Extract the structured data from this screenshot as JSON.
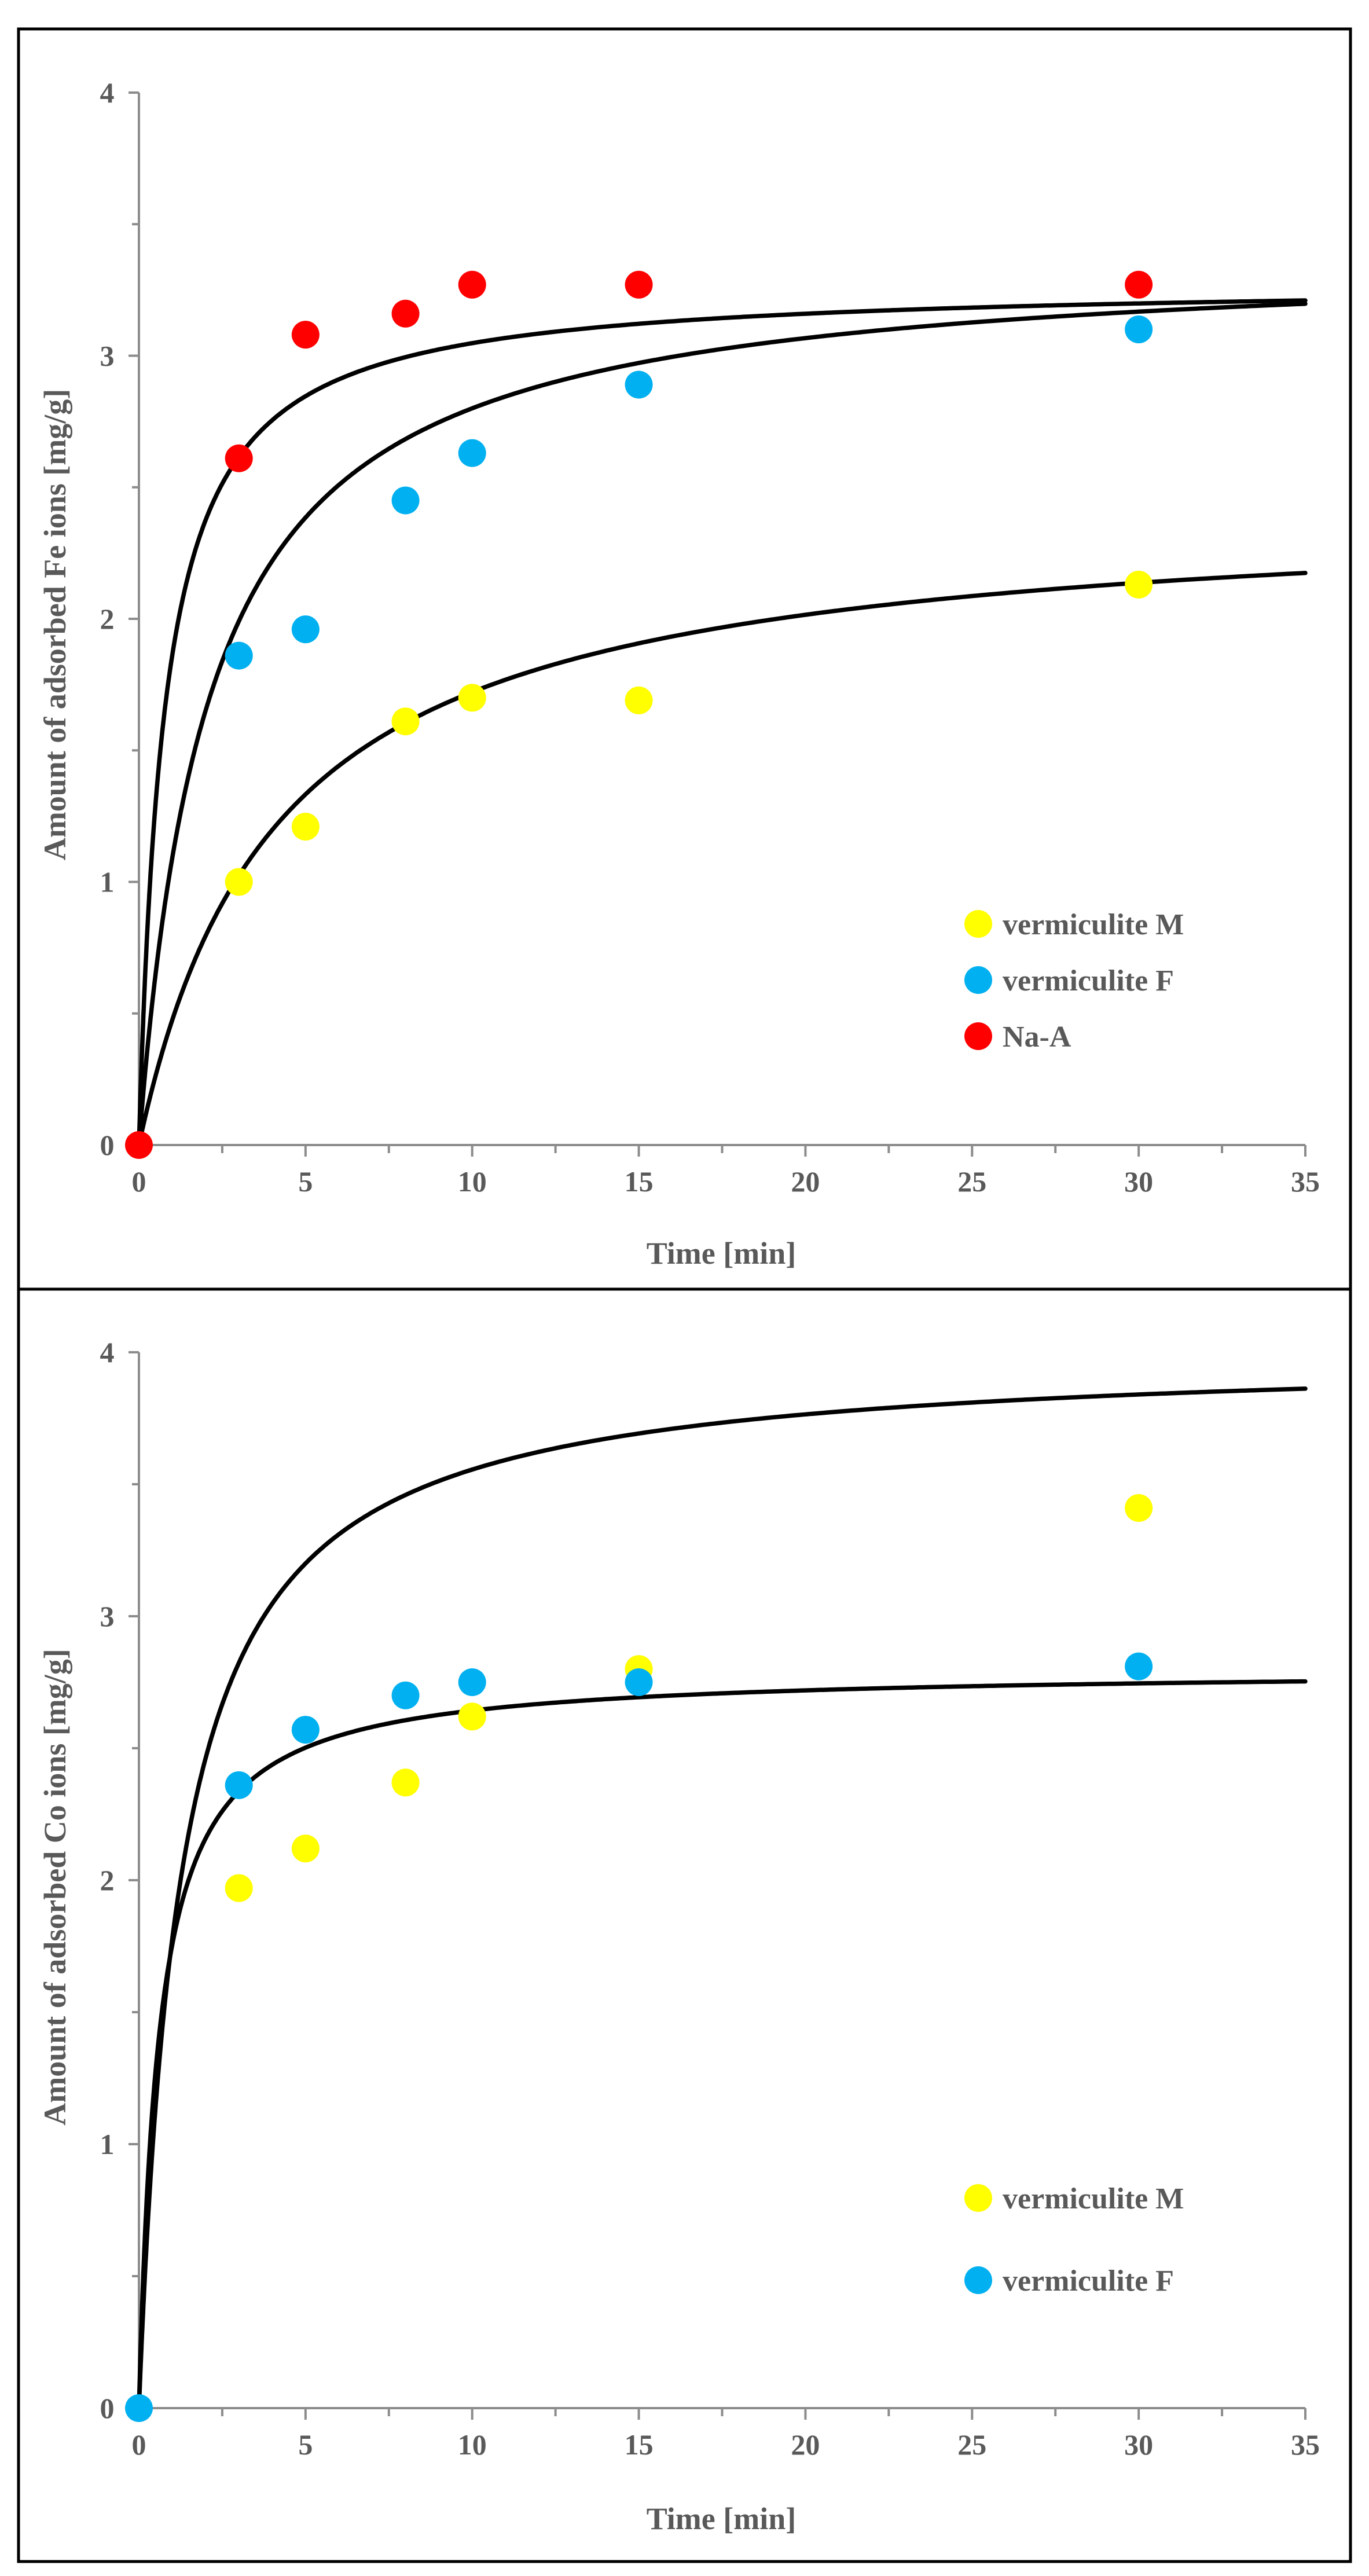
{
  "chart_data": [
    {
      "type": "scatter",
      "title": "",
      "xlabel": "Time [min]",
      "ylabel": "Amount of adsorbed Fe ions [mg/g]",
      "xlim": [
        0,
        35
      ],
      "ylim": [
        0,
        4
      ],
      "x_ticks": [
        0,
        5,
        10,
        15,
        20,
        25,
        30,
        35
      ],
      "y_ticks": [
        0,
        1,
        2,
        3,
        4
      ],
      "grid": false,
      "legend_position": "bottom-right",
      "series": [
        {
          "name": "vermiculite M",
          "color": "#FFFF00",
          "points": [
            [
              3,
              1.0
            ],
            [
              5,
              1.21
            ],
            [
              8,
              1.61
            ],
            [
              10,
              1.7
            ],
            [
              15,
              1.69
            ],
            [
              30,
              2.13
            ]
          ],
          "fit": {
            "qe": 2.43,
            "k": 0.1,
            "curve_color": "#000000"
          }
        },
        {
          "name": "vermiculite F",
          "color": "#00B0F0",
          "points": [
            [
              3,
              1.86
            ],
            [
              5,
              1.96
            ],
            [
              8,
              2.45
            ],
            [
              10,
              2.63
            ],
            [
              15,
              2.89
            ],
            [
              30,
              3.1
            ]
          ],
          "fit": {
            "qe": 3.39,
            "k": 0.14,
            "curve_color": "#000000"
          }
        },
        {
          "name": "Na-A",
          "color": "#FF0000",
          "points": [
            [
              0,
              0
            ],
            [
              3,
              2.61
            ],
            [
              5,
              3.08
            ],
            [
              8,
              3.16
            ],
            [
              10,
              3.27
            ],
            [
              15,
              3.27
            ],
            [
              30,
              3.27
            ]
          ],
          "fit": {
            "qe": 3.28,
            "k": 0.4,
            "curve_color": "#000000"
          }
        }
      ]
    },
    {
      "type": "scatter",
      "title": "",
      "xlabel": "Time [min]",
      "ylabel": "Amount of adsorbed Co ions [mg/g]",
      "xlim": [
        0,
        35
      ],
      "ylim": [
        0,
        4
      ],
      "x_ticks": [
        0,
        5,
        10,
        15,
        20,
        25,
        30,
        35
      ],
      "y_ticks": [
        0,
        1,
        2,
        3,
        4
      ],
      "grid": false,
      "legend_position": "bottom-right",
      "series": [
        {
          "name": "vermiculite M",
          "color": "#FFFF00",
          "points": [
            [
              3,
              1.97
            ],
            [
              5,
              2.12
            ],
            [
              8,
              2.37
            ],
            [
              10,
              2.62
            ],
            [
              15,
              2.8
            ],
            [
              30,
              3.41
            ]
          ],
          "fit": {
            "qe": 4.0,
            "k": 0.2,
            "curve_color": "#000000"
          }
        },
        {
          "name": "vermiculite F",
          "color": "#00B0F0",
          "points": [
            [
              0,
              0
            ],
            [
              3,
              2.36
            ],
            [
              5,
              2.57
            ],
            [
              8,
              2.7
            ],
            [
              10,
              2.75
            ],
            [
              15,
              2.75
            ],
            [
              30,
              2.81
            ]
          ],
          "fit": {
            "qe": 2.8,
            "k": 0.6,
            "curve_color": "#000000"
          }
        }
      ]
    }
  ]
}
